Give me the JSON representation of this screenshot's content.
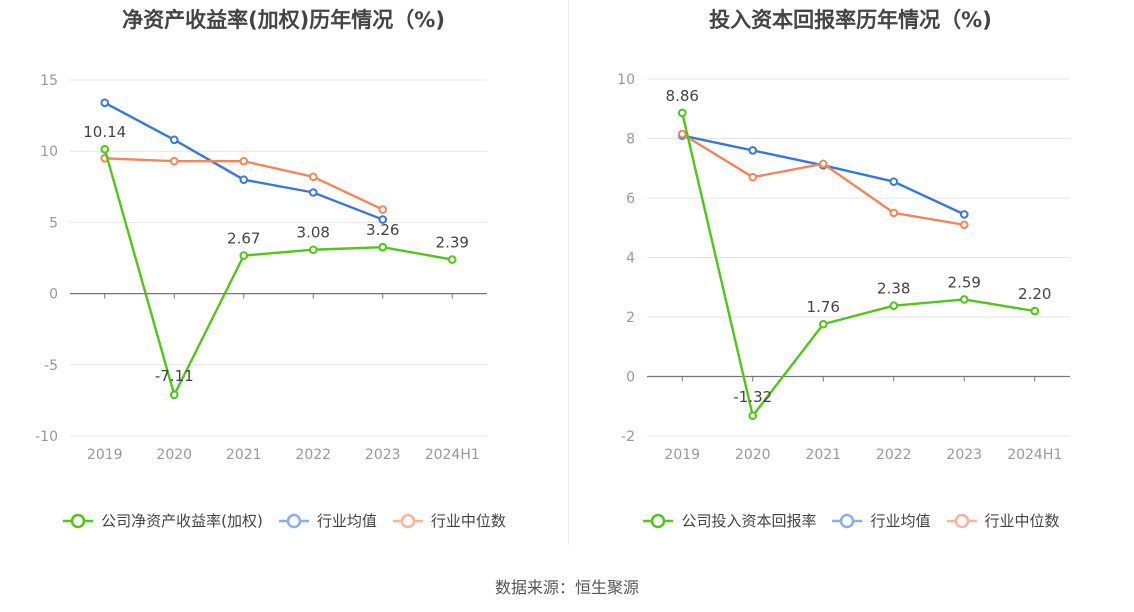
{
  "chart_data": [
    {
      "type": "line",
      "title": "净资产收益率(加权)历年情况（%)",
      "categories": [
        "2019",
        "2020",
        "2021",
        "2022",
        "2023",
        "2024H1"
      ],
      "ylim": [
        -10,
        15
      ],
      "yticks": [
        "15",
        "10",
        "5",
        "0",
        "-5",
        "-10"
      ],
      "ytick_values": [
        15,
        10,
        5,
        0,
        -5,
        -10
      ],
      "series": [
        {
          "name": "公司净资产收益率(加权)",
          "color": "#52c41a",
          "values": [
            10.14,
            -7.11,
            2.67,
            3.08,
            3.26,
            2.39
          ],
          "labels": [
            "10.14",
            "-7.11",
            "2.67",
            "3.08",
            "3.26",
            "2.39"
          ]
        },
        {
          "name": "行业均值",
          "color": "#3a78d8",
          "values": [
            13.4,
            10.8,
            8.0,
            7.1,
            5.2,
            null
          ]
        },
        {
          "name": "行业中位数",
          "color": "#f0875a",
          "values": [
            9.5,
            9.3,
            9.3,
            8.2,
            5.9,
            null
          ]
        }
      ],
      "legend": [
        {
          "label": "公司净资产收益率(加权)",
          "color": "#52c41a"
        },
        {
          "label": "行业均值",
          "color": "#8aaeef"
        },
        {
          "label": "行业中位数",
          "color": "#f7b49a"
        }
      ]
    },
    {
      "type": "line",
      "title": "投入资本回报率历年情况（%)",
      "categories": [
        "2019",
        "2020",
        "2021",
        "2022",
        "2023",
        "2024H1"
      ],
      "ylim": [
        -2,
        10
      ],
      "yticks": [
        "10",
        "8",
        "6",
        "4",
        "2",
        "0",
        "-2"
      ],
      "ytick_values": [
        10,
        8,
        6,
        4,
        2,
        0,
        -2
      ],
      "series": [
        {
          "name": "公司投入资本回报率",
          "color": "#52c41a",
          "values": [
            8.86,
            -1.32,
            1.76,
            2.38,
            2.59,
            2.2
          ],
          "labels": [
            "8.86",
            "-1.32",
            "1.76",
            "2.38",
            "2.59",
            "2.20"
          ]
        },
        {
          "name": "行业均值",
          "color": "#3a78d8",
          "values": [
            8.1,
            7.6,
            7.1,
            6.55,
            5.45,
            null
          ]
        },
        {
          "name": "行业中位数",
          "color": "#f0875a",
          "values": [
            8.15,
            6.7,
            7.15,
            5.5,
            5.1,
            null
          ]
        }
      ],
      "legend": [
        {
          "label": "公司投入资本回报率",
          "color": "#52c41a"
        },
        {
          "label": "行业均值",
          "color": "#8aaeef"
        },
        {
          "label": "行业中位数",
          "color": "#f7b49a"
        }
      ]
    }
  ],
  "footer": {
    "source": "数据来源：恒生聚源"
  }
}
